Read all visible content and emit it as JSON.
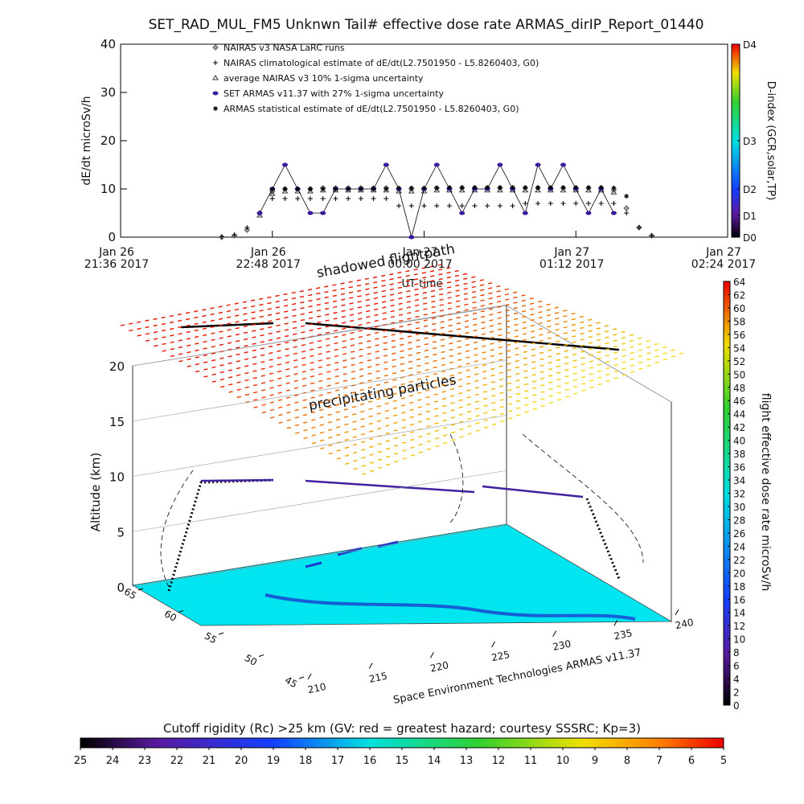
{
  "chart_data": [
    {
      "type": "line",
      "title": "SET_RAD_MUL_FM5 Unknwn Tail#  effective dose rate ARMAS_dirIP_Report_01440",
      "y_label": "dE/dt microSv/h",
      "x_label": "UT time",
      "x": [
        22.4,
        22.5,
        22.6,
        22.7,
        22.8,
        22.9,
        23.0,
        23.1,
        23.2,
        23.3,
        23.4,
        23.5,
        23.6,
        23.7,
        23.8,
        23.9,
        24.0,
        24.1,
        24.2,
        24.3,
        24.4,
        24.5,
        24.6,
        24.7,
        24.8,
        24.9,
        25.0,
        25.1,
        25.2,
        25.3,
        25.4,
        25.5,
        25.6,
        25.7,
        25.8
      ],
      "xlim": [
        21.6,
        26.4
      ],
      "xticks": [
        {
          "value": 21.6,
          "label": "Jan 26\n21:36 2017"
        },
        {
          "value": 22.8,
          "label": "Jan 26\n22:48 2017"
        },
        {
          "value": 24.0,
          "label": "Jan 27\n00:00 2017"
        },
        {
          "value": 25.2,
          "label": "Jan 27\n01:12 2017"
        },
        {
          "value": 26.4,
          "label": "Jan 27\n02:24 2017"
        }
      ],
      "ylim": [
        0,
        40
      ],
      "yticks": [
        0,
        10,
        20,
        30,
        40
      ],
      "series": [
        {
          "name": "NAIRAS v3 NASA LaRC runs",
          "marker": "diamond",
          "color": "#555555",
          "values": [
            0,
            0.3,
            1.5,
            5,
            9.5,
            10,
            10,
            10,
            10.2,
            10.2,
            10.2,
            10.2,
            10.2,
            10.2,
            10,
            10,
            10,
            10.2,
            10.2,
            10.2,
            10.2,
            10.2,
            10.2,
            10.2,
            10.2,
            10.2,
            10.2,
            10.2,
            10.2,
            10.2,
            10.2,
            9.8,
            6,
            2,
            0.3
          ]
        },
        {
          "name": "NAIRAS climatological estimate of dE/dt(L2.7501950 - L5.8260403, G0)",
          "marker": "plus",
          "color": "#000000",
          "values": [
            0.1,
            0.5,
            2,
            5,
            8,
            8,
            8,
            8,
            8,
            8,
            8,
            8,
            8,
            8,
            6.5,
            6.5,
            6.5,
            6.5,
            6.5,
            6.5,
            6.5,
            6.5,
            6.5,
            6.5,
            7,
            7,
            7,
            7,
            7,
            7,
            7,
            7,
            5,
            2,
            0.3
          ]
        },
        {
          "name": "average NAIRAS v3 10% 1-sigma uncertainty",
          "marker": "triangle",
          "color": "#333333",
          "values": [
            null,
            null,
            null,
            4.5,
            9,
            9.5,
            9.5,
            9.5,
            9.7,
            9.7,
            9.7,
            9.7,
            9.7,
            9.7,
            9.5,
            9.5,
            9.5,
            9.7,
            9.7,
            9.7,
            9.7,
            9.7,
            9.7,
            9.7,
            9.7,
            9.7,
            9.7,
            9.7,
            9.7,
            9.7,
            9.7,
            9.3,
            null,
            null,
            null
          ]
        },
        {
          "name": "SET ARMAS v11.37 with 27% 1-sigma uncertainty",
          "marker": "dot",
          "color": "#3a1a9a",
          "values": [
            null,
            null,
            null,
            5,
            10,
            15,
            10,
            5,
            5,
            10,
            10,
            10,
            10,
            15,
            10,
            0,
            10,
            15,
            10,
            5,
            10,
            10,
            15,
            10,
            5,
            15,
            10,
            15,
            10,
            5,
            10,
            5,
            null,
            null,
            null
          ]
        },
        {
          "name": "ARMAS statistical estimate of dE/dt(L2.7501950 - L5.8260403, G0)",
          "marker": "asterisk",
          "color": "#000000",
          "values": [
            null,
            null,
            null,
            null,
            10,
            10,
            10,
            10,
            10,
            10,
            10,
            10,
            10,
            10,
            10.2,
            10.2,
            10.2,
            10.2,
            10.3,
            10.3,
            10.3,
            10.3,
            10.3,
            10.3,
            10.3,
            10.3,
            10.3,
            10.3,
            10.3,
            10.3,
            10.3,
            10.2,
            8.5,
            null,
            null
          ]
        }
      ]
    },
    {
      "type": "colorbar",
      "label": "D-index (GCR,solar,TP)",
      "lim": [
        0,
        40
      ],
      "ticks": [
        {
          "value": 0,
          "label": "D0"
        },
        {
          "value": 4.5,
          "label": "D1"
        },
        {
          "value": 10,
          "label": "D2"
        },
        {
          "value": 20,
          "label": "D3"
        },
        {
          "value": 40,
          "label": "D4"
        }
      ]
    },
    {
      "type": "surface3d",
      "z_label": "Altitude (km)",
      "annotations": [
        "shadowed flightpath",
        "precipitating particles",
        "Space Environment Technologies ARMAS v11.37"
      ],
      "zlim": [
        0,
        20
      ],
      "zticks": [
        0,
        5,
        10,
        15,
        20
      ],
      "xlim": [
        210,
        240
      ],
      "xticks": [
        210,
        215,
        220,
        225,
        230,
        235,
        240
      ],
      "ylim": [
        65,
        45
      ],
      "yticks": [
        65,
        60,
        55,
        50,
        45
      ]
    },
    {
      "type": "colorbar",
      "label": "flight effective dose rate microSv/h",
      "lim": [
        0,
        64
      ],
      "ticks": [
        0,
        2,
        4,
        6,
        8,
        10,
        12,
        14,
        16,
        18,
        20,
        22,
        24,
        26,
        28,
        30,
        32,
        34,
        36,
        38,
        40,
        42,
        44,
        46,
        48,
        50,
        52,
        54,
        56,
        58,
        60,
        62,
        64
      ]
    },
    {
      "type": "colorbar",
      "label": "Cutoff rigidity (Rc) >25 km (GV: red = greatest hazard; courtesy SSSRC; Kp=3)",
      "lim": [
        25,
        5
      ],
      "ticks": [
        25,
        24,
        23,
        22,
        21,
        20,
        19,
        18,
        17,
        16,
        15,
        14,
        13,
        12,
        11,
        10,
        9,
        8,
        7,
        6,
        5
      ]
    }
  ]
}
